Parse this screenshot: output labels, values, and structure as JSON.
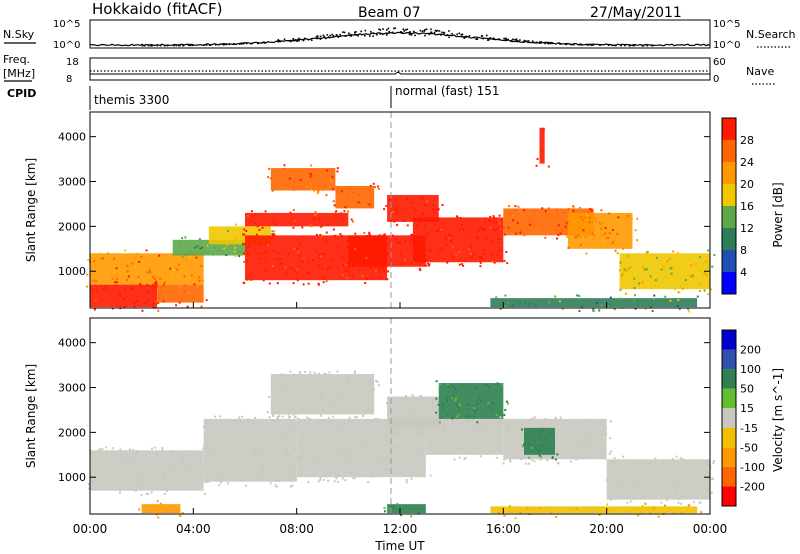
{
  "header": {
    "station": "Hokkaido (fitACF)",
    "beam": "Beam 07",
    "date": "27/May/2011"
  },
  "aux_panels": {
    "nsky_label": "N.Sky",
    "nsky_ticks": [
      "10^5",
      "10^0"
    ],
    "nsearch_label": "N.Search",
    "nsearch_ticks": [
      "10^5",
      "10^0"
    ],
    "freq_label": "Freq.",
    "freq_unit": "[MHz]",
    "freq_ticks": [
      "18",
      "8"
    ],
    "nave_label": "Nave",
    "nave_ticks": [
      "60",
      "0"
    ],
    "cpid_label": "CPID",
    "cpid_entries": [
      "themis 3300",
      "normal (fast) 151"
    ]
  },
  "x_axis": {
    "label": "Time UT",
    "ticks": [
      "00:00",
      "04:00",
      "08:00",
      "12:00",
      "16:00",
      "20:00",
      "00:00"
    ]
  },
  "panels": {
    "power": {
      "ylabel": "Slant Range [km]",
      "yticks": [
        "1000",
        "2000",
        "3000",
        "4000"
      ],
      "cbar_label": "Power [dB]",
      "cbar_ticks": [
        "4",
        "8",
        "12",
        "16",
        "20",
        "24",
        "28"
      ]
    },
    "velocity": {
      "ylabel": "Slant Range [km]",
      "yticks": [
        "1000",
        "2000",
        "3000",
        "4000"
      ],
      "cbar_label": "Velocity [m s^-1]",
      "cbar_ticks": [
        "200",
        "100",
        "50",
        "15",
        "-15",
        "-50",
        "-100",
        "-200"
      ]
    }
  },
  "chart_data": [
    {
      "type": "heatmap",
      "title": "Hokkaido (fitACF) Beam 07 27/May/2011",
      "quantity": "Power",
      "xlabel": "Time UT",
      "ylabel": "Slant Range [km]",
      "xlim_hours": [
        0,
        24
      ],
      "ylim_km": [
        180,
        4550
      ],
      "zlim_dB": [
        0,
        30
      ],
      "colors": [
        "#0000ff",
        "#1f4fb0",
        "#2e7d58",
        "#5ca84a",
        "#f0c800",
        "#ff9900",
        "#ff6600",
        "#ff1a00"
      ],
      "cells": [
        {
          "t": [
            0,
            4.4
          ],
          "r": [
            700,
            1400
          ],
          "dB": 22
        },
        {
          "t": [
            0,
            2.6
          ],
          "r": [
            200,
            700
          ],
          "dB": 30
        },
        {
          "t": [
            2.6,
            4.4
          ],
          "r": [
            300,
            700
          ],
          "dB": 26
        },
        {
          "t": [
            3.2,
            6.0
          ],
          "r": [
            1350,
            1700
          ],
          "dB": 12
        },
        {
          "t": [
            4.6,
            7.0
          ],
          "r": [
            1600,
            2000
          ],
          "dB": 16
        },
        {
          "t": [
            6.0,
            10.0
          ],
          "r": [
            2000,
            2300
          ],
          "dB": 28
        },
        {
          "t": [
            6.0,
            11.5
          ],
          "r": [
            800,
            1800
          ],
          "dB": 30
        },
        {
          "t": [
            7.0,
            9.5
          ],
          "r": [
            2800,
            3300
          ],
          "dB": 24
        },
        {
          "t": [
            9.5,
            11.0
          ],
          "r": [
            2400,
            2900
          ],
          "dB": 26
        },
        {
          "t": [
            10.0,
            13.0
          ],
          "r": [
            1100,
            1800
          ],
          "dB": 30
        },
        {
          "t": [
            11.5,
            13.5
          ],
          "r": [
            2100,
            2700
          ],
          "dB": 30
        },
        {
          "t": [
            12.5,
            16.0
          ],
          "r": [
            1200,
            2200
          ],
          "dB": 30
        },
        {
          "t": [
            16.0,
            19.5
          ],
          "r": [
            1800,
            2400
          ],
          "dB": 26
        },
        {
          "t": [
            18.5,
            21.0
          ],
          "r": [
            1500,
            2300
          ],
          "dB": 22
        },
        {
          "t": [
            20.5,
            24.0
          ],
          "r": [
            600,
            1400
          ],
          "dB": 16
        },
        {
          "t": [
            15.5,
            23.5
          ],
          "r": [
            200,
            400
          ],
          "dB": 10
        },
        {
          "t": [
            17.4,
            17.6
          ],
          "r": [
            3400,
            4200
          ],
          "dB": 30
        }
      ]
    },
    {
      "type": "heatmap",
      "title": "Hokkaido (fitACF) Beam 07 27/May/2011",
      "quantity": "Velocity",
      "xlabel": "Time UT",
      "ylabel": "Slant Range [km]",
      "xlim_hours": [
        0,
        24
      ],
      "ylim_km": [
        180,
        4550
      ],
      "zlim_ms": [
        -250,
        250
      ],
      "colors": [
        "#ff0000",
        "#ff6600",
        "#ff9900",
        "#f0c000",
        "#c8c8c0",
        "#60c030",
        "#2e8050",
        "#3050b0",
        "#0000d0"
      ],
      "cells": [
        {
          "t": [
            0,
            4.4
          ],
          "r": [
            700,
            1600
          ],
          "v": 0
        },
        {
          "t": [
            4.4,
            8.0
          ],
          "r": [
            900,
            2300
          ],
          "v": 0
        },
        {
          "t": [
            8.0,
            13.0
          ],
          "r": [
            1000,
            2300
          ],
          "v": 0
        },
        {
          "t": [
            7.0,
            11.0
          ],
          "r": [
            2400,
            3300
          ],
          "v": 0
        },
        {
          "t": [
            11.5,
            13.5
          ],
          "r": [
            2100,
            2800
          ],
          "v": 0
        },
        {
          "t": [
            13.0,
            16.0
          ],
          "r": [
            1500,
            2300
          ],
          "v": 0
        },
        {
          "t": [
            13.5,
            16.0
          ],
          "r": [
            2300,
            3100
          ],
          "v": 35
        },
        {
          "t": [
            16.0,
            20.0
          ],
          "r": [
            1400,
            2300
          ],
          "v": 0
        },
        {
          "t": [
            16.8,
            18.0
          ],
          "r": [
            1500,
            2100
          ],
          "v": 35
        },
        {
          "t": [
            20.0,
            24.0
          ],
          "r": [
            500,
            1400
          ],
          "v": 0
        },
        {
          "t": [
            2.0,
            3.5
          ],
          "r": [
            200,
            400
          ],
          "v": -60
        },
        {
          "t": [
            11.5,
            13.0
          ],
          "r": [
            200,
            400
          ],
          "v": 35
        },
        {
          "t": [
            15.5,
            23.5
          ],
          "r": [
            200,
            350
          ],
          "v": -30
        }
      ]
    }
  ]
}
